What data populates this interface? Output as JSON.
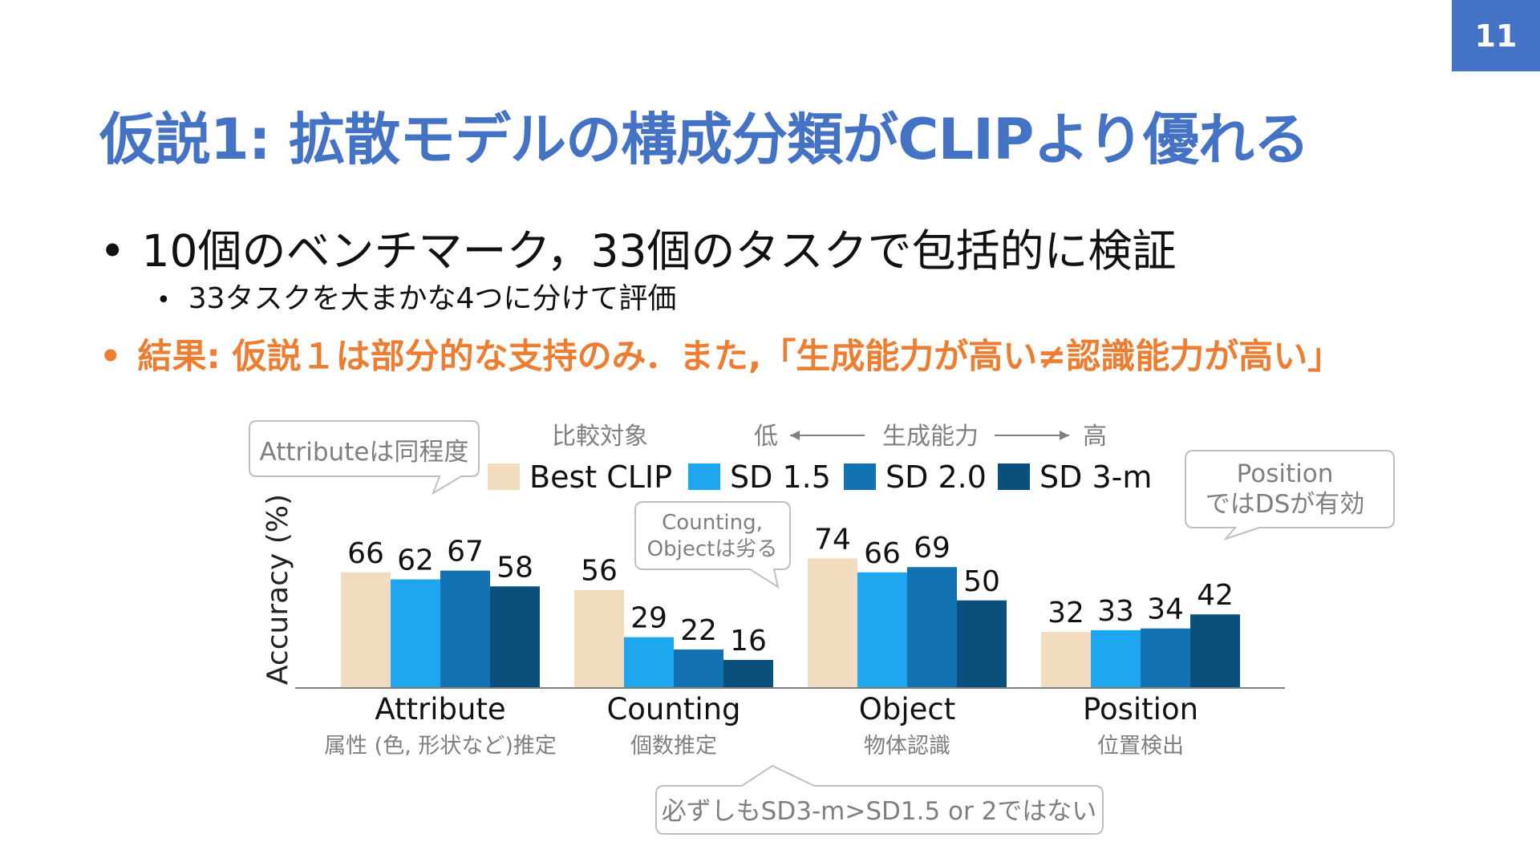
{
  "page": {
    "number": "11"
  },
  "title": "仮説1: 拡散モデルの構成分類がCLIPより優れる",
  "bullets": {
    "b1": "10個のベンチマーク，33個のタスクで包括的に検証",
    "b2": "33タスクを大まかな4つに分けて評価",
    "b3": "結果: 仮説１は部分的な支持のみ．また,「生成能力が高い≠認識能力が高い」"
  },
  "bullet_symbol": "•",
  "legend_header": {
    "compare": "比較対象",
    "low": "低",
    "arrow_left": "←",
    "generation": "生成能力",
    "arrow_right": "→",
    "high": "高"
  },
  "callouts": {
    "attribute": "Attributeは同程度",
    "counting_line1": "Counting,",
    "counting_line2": "Objectは劣る",
    "position_line1": "Position",
    "position_line2": "ではDSが有効",
    "bottom": "必ずしもSD3-m>SD1.5 or 2ではない"
  },
  "colors": {
    "title": "#4472c4",
    "result": "#ed7d31",
    "best_clip": "#f2dcc0",
    "sd15": "#1ea7f0",
    "sd20": "#1272b2",
    "sd3m": "#0b4f7c"
  },
  "chart_data": {
    "type": "bar",
    "ylabel": "Accuracy (%)",
    "categories": [
      "Attribute",
      "Counting",
      "Object",
      "Position"
    ],
    "category_sublabels": [
      "属性 (色, 形状など)推定",
      "個数推定",
      "物体認識",
      "位置検出"
    ],
    "series": [
      {
        "name": "Best CLIP",
        "values": [
          66,
          56,
          74,
          32
        ]
      },
      {
        "name": "SD 1.5",
        "values": [
          62,
          29,
          66,
          33
        ]
      },
      {
        "name": "SD 2.0",
        "values": [
          67,
          22,
          69,
          34
        ]
      },
      {
        "name": "SD 3-m",
        "values": [
          58,
          16,
          50,
          42
        ]
      }
    ],
    "ylim": [
      0,
      100
    ],
    "legend": "top",
    "grid": false
  }
}
